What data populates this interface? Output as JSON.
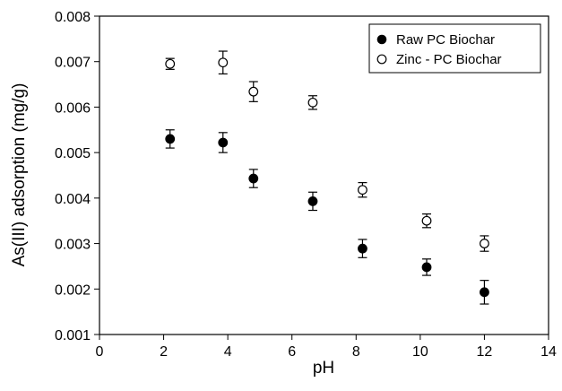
{
  "chart_data": {
    "type": "scatter",
    "title": "",
    "xlabel": "pH",
    "ylabel": "As(III) adsorption (mg/g)",
    "xlim": [
      0,
      14
    ],
    "ylim": [
      0.001,
      0.008
    ],
    "xticks": [
      "0",
      "2",
      "4",
      "6",
      "8",
      "10",
      "12",
      "14"
    ],
    "yticks": [
      "0.001",
      "0.002",
      "0.003",
      "0.004",
      "0.005",
      "0.006",
      "0.007",
      "0.008"
    ],
    "grid": false,
    "legend_position": "top-right",
    "series": [
      {
        "name": "Raw PC Biochar",
        "marker": "filled-circle",
        "points": [
          {
            "x": 2.2,
            "y": 0.0053,
            "err": 0.0002
          },
          {
            "x": 3.85,
            "y": 0.00522,
            "err": 0.00022
          },
          {
            "x": 4.8,
            "y": 0.00443,
            "err": 0.0002
          },
          {
            "x": 6.65,
            "y": 0.00393,
            "err": 0.0002
          },
          {
            "x": 8.2,
            "y": 0.00289,
            "err": 0.0002
          },
          {
            "x": 10.2,
            "y": 0.00248,
            "err": 0.00018
          },
          {
            "x": 12.0,
            "y": 0.00193,
            "err": 0.00026
          }
        ]
      },
      {
        "name": "Zinc - PC Biochar",
        "marker": "open-circle",
        "points": [
          {
            "x": 2.2,
            "y": 0.00695,
            "err": 0.00012
          },
          {
            "x": 3.85,
            "y": 0.00698,
            "err": 0.00025
          },
          {
            "x": 4.8,
            "y": 0.00634,
            "err": 0.00022
          },
          {
            "x": 6.65,
            "y": 0.0061,
            "err": 0.00015
          },
          {
            "x": 8.2,
            "y": 0.00418,
            "err": 0.00016
          },
          {
            "x": 10.2,
            "y": 0.0035,
            "err": 0.00015
          },
          {
            "x": 12.0,
            "y": 0.003,
            "err": 0.00017
          }
        ]
      }
    ]
  }
}
